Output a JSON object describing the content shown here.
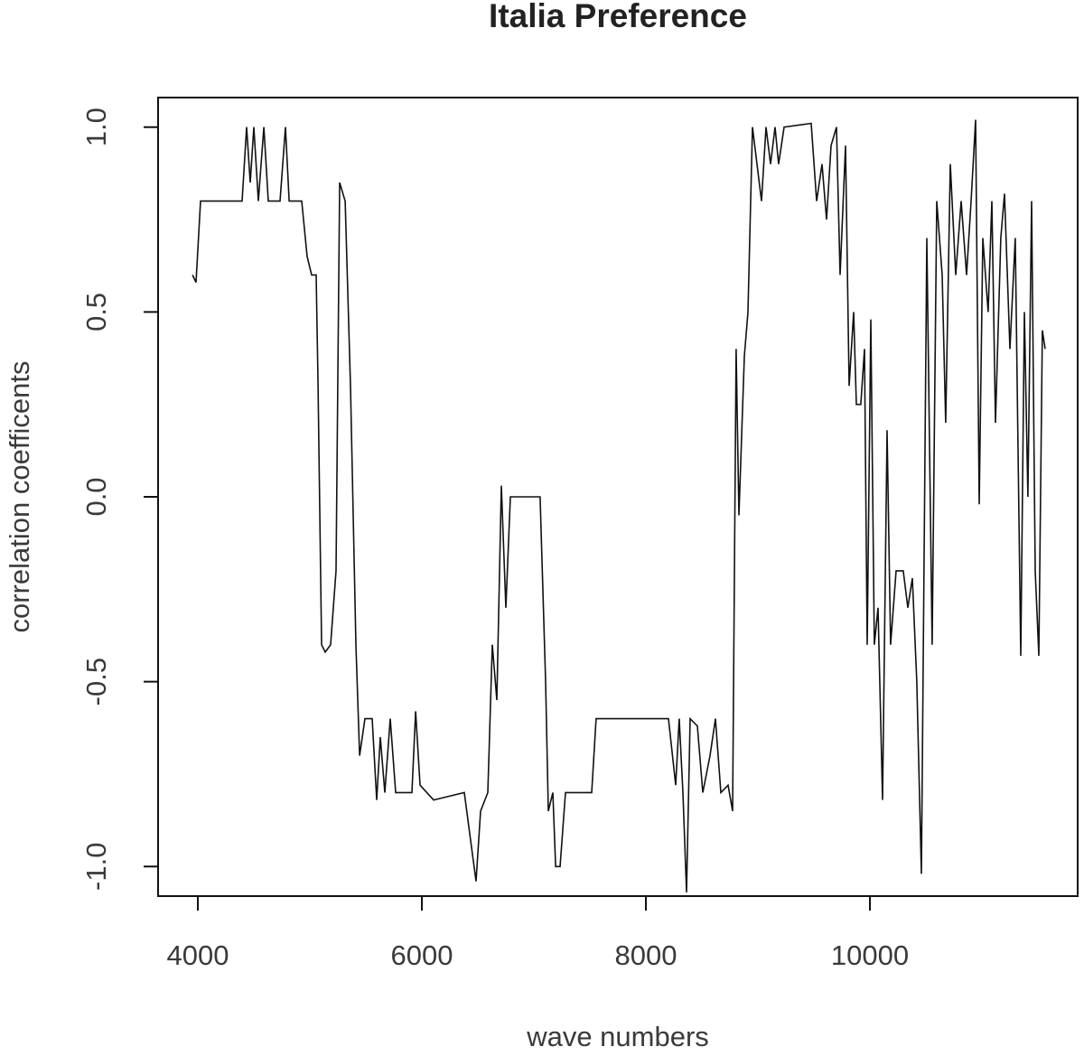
{
  "chart_data": {
    "type": "line",
    "title": "Italia Preference",
    "x_label": "wave numbers",
    "y_label": "correlation coefficents",
    "color": "#111111",
    "xlim": [
      3645,
      11855
    ],
    "ylim": [
      -1.08,
      1.08
    ],
    "xticks": [
      4000,
      6000,
      8000,
      10000
    ],
    "yticks": [
      {
        "value": -1,
        "label": "-1.0"
      },
      -0.5,
      {
        "value": 0,
        "label": "0.0"
      },
      0.5,
      {
        "value": 1,
        "label": "1.0"
      }
    ],
    "x": [
      3952,
      3984,
      4024,
      4395,
      4435,
      4468,
      4500,
      4540,
      4589,
      4629,
      4734,
      4782,
      4815,
      4927,
      4976,
      5016,
      5056,
      5073,
      5105,
      5137,
      5185,
      5234,
      5266,
      5315,
      5363,
      5411,
      5444,
      5492,
      5556,
      5597,
      5629,
      5669,
      5718,
      5766,
      5911,
      5944,
      5984,
      6105,
      6379,
      6444,
      6484,
      6524,
      6589,
      6629,
      6669,
      6710,
      6750,
      6790,
      7056,
      7105,
      7129,
      7169,
      7194,
      7234,
      7282,
      7516,
      7556,
      8202,
      8266,
      8298,
      8331,
      8363,
      8395,
      8460,
      8508,
      8573,
      8621,
      8669,
      8734,
      8774,
      8806,
      8831,
      8879,
      8911,
      8952,
      8992,
      9032,
      9073,
      9113,
      9153,
      9185,
      9234,
      9476,
      9524,
      9573,
      9613,
      9653,
      9702,
      9734,
      9782,
      9815,
      9855,
      9879,
      9919,
      9952,
      9976,
      10008,
      10040,
      10073,
      10113,
      10153,
      10185,
      10234,
      10298,
      10339,
      10379,
      10419,
      10460,
      10508,
      10556,
      10597,
      10645,
      10677,
      10718,
      10766,
      10815,
      10863,
      10903,
      10944,
      10976,
      11008,
      11056,
      11089,
      11121,
      11169,
      11202,
      11250,
      11298,
      11347,
      11379,
      11411,
      11444,
      11476,
      11508,
      11540,
      11565
    ],
    "values": [
      0.6,
      0.58,
      0.8,
      0.8,
      1.0,
      0.85,
      1.0,
      0.8,
      1.0,
      0.8,
      0.8,
      1.0,
      0.8,
      0.8,
      0.65,
      0.6,
      0.6,
      0.3,
      -0.4,
      -0.42,
      -0.4,
      -0.2,
      0.85,
      0.8,
      0.3,
      -0.4,
      -0.7,
      -0.6,
      -0.6,
      -0.82,
      -0.65,
      -0.8,
      -0.6,
      -0.8,
      -0.8,
      -0.58,
      -0.78,
      -0.82,
      -0.8,
      -0.95,
      -1.04,
      -0.85,
      -0.8,
      -0.4,
      -0.55,
      0.03,
      -0.3,
      0.0,
      0.0,
      -0.5,
      -0.85,
      -0.8,
      -1.0,
      -1.0,
      -0.8,
      -0.8,
      -0.6,
      -0.6,
      -0.78,
      -0.6,
      -0.8,
      -1.07,
      -0.6,
      -0.62,
      -0.8,
      -0.7,
      -0.6,
      -0.8,
      -0.78,
      -0.85,
      0.4,
      -0.05,
      0.38,
      0.5,
      1.0,
      0.9,
      0.8,
      1.0,
      0.9,
      1.0,
      0.9,
      1.0,
      1.01,
      0.8,
      0.9,
      0.75,
      0.95,
      1.0,
      0.6,
      0.95,
      0.3,
      0.5,
      0.25,
      0.25,
      0.4,
      -0.4,
      0.48,
      -0.4,
      -0.3,
      -0.82,
      0.18,
      -0.4,
      -0.2,
      -0.2,
      -0.3,
      -0.22,
      -0.5,
      -1.02,
      0.7,
      -0.4,
      0.8,
      0.6,
      0.2,
      0.9,
      0.6,
      0.8,
      0.6,
      0.8,
      1.02,
      -0.02,
      0.7,
      0.5,
      0.8,
      0.2,
      0.7,
      0.82,
      0.4,
      0.7,
      -0.43,
      0.5,
      0.0,
      0.8,
      -0.2,
      -0.43,
      0.45,
      0.4
    ]
  }
}
